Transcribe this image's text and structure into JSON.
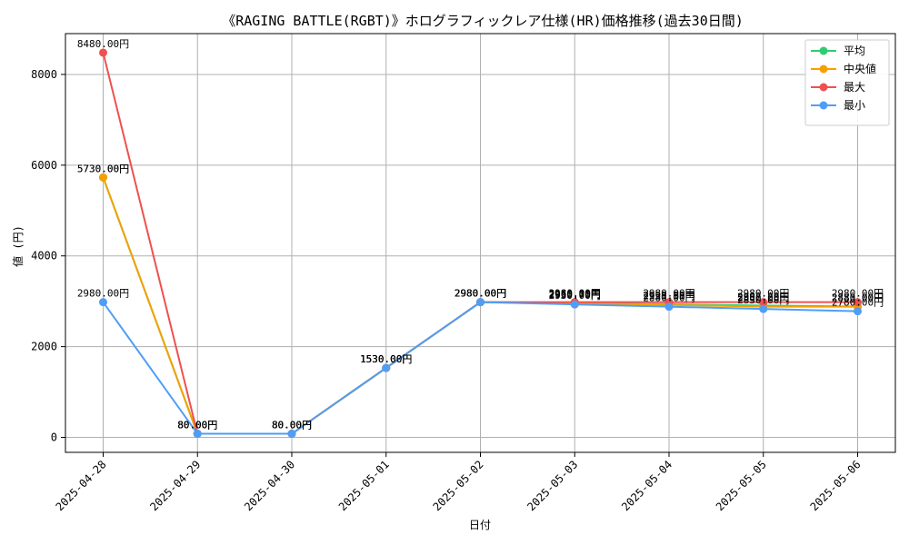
{
  "chart_data": {
    "type": "line",
    "title": "《RAGING BATTLE(RGBT)》ホログラフィックレア仕様(HR)価格推移(過去30日間)",
    "xlabel": "日付",
    "ylabel": "値 (円)",
    "x": [
      "2025-04-28",
      "2025-04-29",
      "2025-04-30",
      "2025-05-01",
      "2025-05-02",
      "2025-05-03",
      "2025-05-04",
      "2025-05-05",
      "2025-05-06"
    ],
    "ylim": [
      -330,
      8900
    ],
    "yticks": [
      0,
      2000,
      4000,
      6000,
      8000
    ],
    "grid": true,
    "legend_position": "top-right",
    "label_suffix": "円",
    "series": [
      {
        "name": "平均",
        "color": "#2ecc71",
        "values": [
          5730,
          80,
          80,
          1530,
          2980,
          2955.75,
          2933.33,
          2907.2,
          2883
        ]
      },
      {
        "name": "中央値",
        "color": "#f5a000",
        "values": [
          5730,
          80,
          80,
          1530,
          2980,
          2960,
          2920,
          2880,
          2880
        ]
      },
      {
        "name": "最大",
        "color": "#ef5050",
        "values": [
          8480,
          80,
          80,
          1530,
          2980,
          2980,
          2980,
          2980,
          2980
        ]
      },
      {
        "name": "最小",
        "color": "#4f9ef5",
        "values": [
          2980,
          80,
          80,
          1530,
          2980,
          2930,
          2880,
          2830,
          2780
        ]
      }
    ]
  }
}
